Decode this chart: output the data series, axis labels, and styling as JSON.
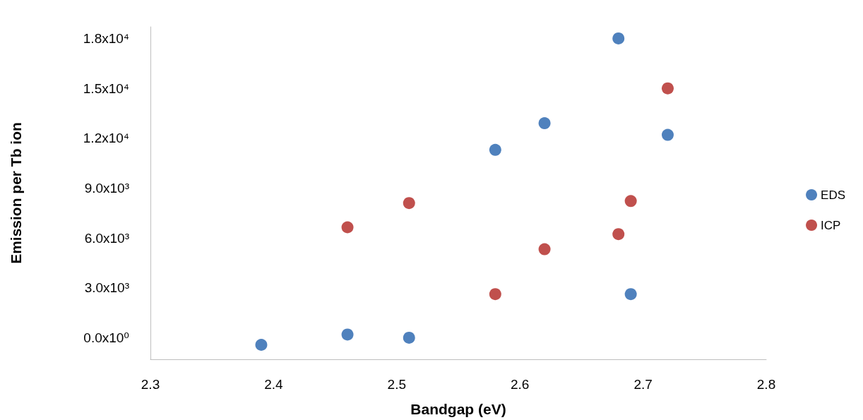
{
  "chart_data": {
    "type": "scatter",
    "xlabel": "Bandgap (eV)",
    "ylabel": "Emission per Tb ion",
    "series": [
      {
        "name": "EDS",
        "color": "#4f81bd",
        "x": [
          2.39,
          2.46,
          2.51,
          2.58,
          2.62,
          2.68,
          2.72,
          2.69
        ],
        "values": [
          -430,
          190,
          0,
          11300,
          12900,
          18000,
          12200,
          2620
        ]
      },
      {
        "name": "ICP",
        "color": "#c0504d",
        "x": [
          2.46,
          2.51,
          2.58,
          2.62,
          2.68,
          2.69,
          2.72
        ],
        "values": [
          6640,
          8100,
          2620,
          5320,
          6230,
          8220,
          15000
        ]
      }
    ],
    "xlim": [
      2.3,
      2.8
    ],
    "xticks": [
      2.3,
      2.4,
      2.5,
      2.6,
      2.7,
      2.8
    ],
    "ylim": [
      -1300,
      18700
    ],
    "yticks": [
      {
        "value": 0,
        "label": "0.0x10⁰"
      },
      {
        "value": 3000,
        "label": "3.0x10³"
      },
      {
        "value": 6000,
        "label": "6.0x10³"
      },
      {
        "value": 9000,
        "label": "9.0x10³"
      },
      {
        "value": 12000,
        "label": "1.2x10⁴"
      },
      {
        "value": 15000,
        "label": "1.5x10⁴"
      },
      {
        "value": 18000,
        "label": "1.8x10⁴"
      }
    ],
    "grid": false,
    "legend": "right",
    "marker": "circle"
  }
}
